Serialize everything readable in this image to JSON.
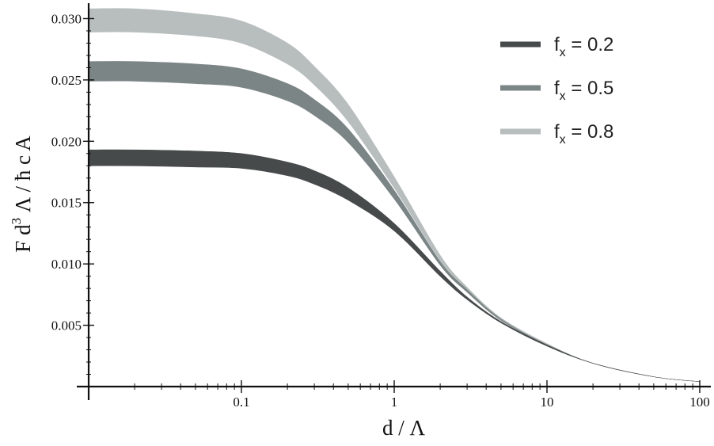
{
  "chart_data": {
    "type": "area",
    "title": "",
    "x_scale": "log",
    "xlim": [
      0.01,
      100
    ],
    "ylim": [
      0,
      0.031
    ],
    "xlabel": "d / Λ",
    "ylabel": {
      "prefix": "F d",
      "sup": "3",
      "suffix": " Λ / ħ c A"
    },
    "x_ticks": [
      {
        "value": 0.1,
        "label": "0.1"
      },
      {
        "value": 1,
        "label": "1"
      },
      {
        "value": 10,
        "label": "10"
      },
      {
        "value": 100,
        "label": "100"
      }
    ],
    "y_ticks": [
      {
        "value": 0.005,
        "label": "0.005"
      },
      {
        "value": 0.01,
        "label": "0.010"
      },
      {
        "value": 0.015,
        "label": "0.015"
      },
      {
        "value": 0.02,
        "label": "0.020"
      },
      {
        "value": 0.025,
        "label": "0.025"
      },
      {
        "value": 0.03,
        "label": "0.030"
      }
    ],
    "grid": false,
    "legend_position": "top-right",
    "x": [
      0.01,
      0.02,
      0.05,
      0.1,
      0.2,
      0.3,
      0.5,
      1,
      2,
      3,
      5,
      10,
      20,
      50,
      100
    ],
    "series": [
      {
        "name": "0.2",
        "legend_label": {
          "base": "f",
          "sub": "x",
          "eq": " = 0.2"
        },
        "color": "#474a4b",
        "lower": [
          0.018,
          0.018,
          0.0179,
          0.0178,
          0.0172,
          0.0165,
          0.0152,
          0.0127,
          0.009,
          0.0071,
          0.0052,
          0.0033,
          0.0019,
          0.0008,
          0.0004
        ],
        "upper": [
          0.0193,
          0.0193,
          0.0192,
          0.019,
          0.0183,
          0.0176,
          0.0162,
          0.0133,
          0.0094,
          0.0073,
          0.0053,
          0.0034,
          0.0019,
          0.0008,
          0.0004
        ]
      },
      {
        "name": "0.5",
        "legend_label": {
          "base": "f",
          "sub": "x",
          "eq": " = 0.5"
        },
        "color": "#7c8586",
        "lower": [
          0.0249,
          0.0249,
          0.0247,
          0.0244,
          0.0233,
          0.0221,
          0.0199,
          0.0153,
          0.0099,
          0.0077,
          0.0054,
          0.0034,
          0.0019,
          0.0008,
          0.0004
        ],
        "upper": [
          0.0265,
          0.0265,
          0.0263,
          0.0259,
          0.0247,
          0.0234,
          0.021,
          0.016,
          0.0102,
          0.0079,
          0.0055,
          0.0034,
          0.0019,
          0.0008,
          0.0004
        ]
      },
      {
        "name": "0.8",
        "legend_label": {
          "base": "f",
          "sub": "x",
          "eq": " = 0.8"
        },
        "color": "#b7bebd",
        "lower": [
          0.0289,
          0.0289,
          0.0286,
          0.028,
          0.0263,
          0.0246,
          0.0216,
          0.0162,
          0.0103,
          0.0079,
          0.0055,
          0.0034,
          0.0019,
          0.0008,
          0.0004
        ],
        "upper": [
          0.0308,
          0.0308,
          0.0304,
          0.0298,
          0.028,
          0.0261,
          0.023,
          0.0171,
          0.0107,
          0.0081,
          0.0056,
          0.0035,
          0.0019,
          0.0008,
          0.0004
        ]
      }
    ]
  }
}
